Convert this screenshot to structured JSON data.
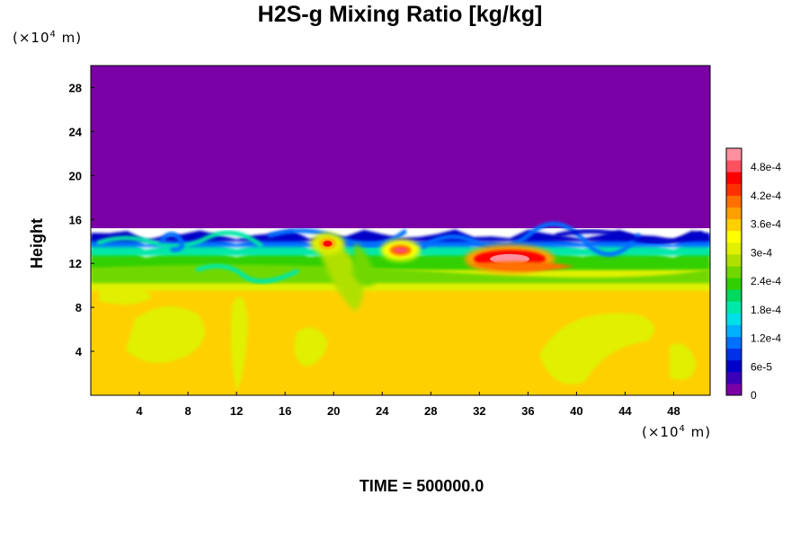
{
  "chart_data": {
    "type": "heatmap",
    "title": "H2S-g Mixing Ratio [kg/kg]",
    "ylabel": "Height",
    "xunit": "m",
    "yunit": "m",
    "unit_prefix": "(×10",
    "unit_exp": "4",
    "footer": "TIME = 500000.0",
    "xlim": [
      0,
      51
    ],
    "ylim": [
      0,
      30
    ],
    "x_ticks": [
      4,
      8,
      12,
      16,
      20,
      24,
      28,
      32,
      36,
      40,
      44,
      48
    ],
    "y_ticks": [
      4,
      8,
      12,
      16,
      20,
      24,
      28
    ],
    "colorbar": {
      "vmin": 0,
      "vmax": 0.00052,
      "ticks": [
        {
          "value": 0,
          "label": "0"
        },
        {
          "value": 6e-05,
          "label": "6e-5"
        },
        {
          "value": 0.00012,
          "label": "1.2e-4"
        },
        {
          "value": 0.00018,
          "label": "1.8e-4"
        },
        {
          "value": 0.00024,
          "label": "2.4e-4"
        },
        {
          "value": 0.0003,
          "label": "3e-4"
        },
        {
          "value": 0.00036,
          "label": "3.6e-4"
        },
        {
          "value": 0.00042,
          "label": "4.2e-4"
        },
        {
          "value": 0.00048,
          "label": "4.8e-4"
        }
      ],
      "colors": [
        "#7a00a6",
        "#3a00b8",
        "#0000c8",
        "#0030e8",
        "#0070ff",
        "#00b0ff",
        "#00e0e8",
        "#00e8a8",
        "#00d860",
        "#30d000",
        "#70d800",
        "#b0e000",
        "#e0f000",
        "#ffff00",
        "#ffd000",
        "#ffa000",
        "#ff7000",
        "#ff3000",
        "#ff0000",
        "#ff5060",
        "#ff90a0"
      ]
    },
    "regions": [
      {
        "name": "upper",
        "y_range": [
          15.2,
          30
        ],
        "value": 0
      },
      {
        "name": "mixing-layer",
        "y_range": [
          10.2,
          15.2
        ],
        "value_range": [
          0,
          0.00052
        ]
      },
      {
        "name": "lower",
        "y_range": [
          0,
          10.2
        ],
        "value": 0.00035
      }
    ],
    "hotspots": [
      {
        "x": 34.5,
        "y": 12.4,
        "value": 0.0005
      },
      {
        "x": 25.5,
        "y": 13.2,
        "value": 0.00046
      },
      {
        "x": 19.5,
        "y": 13.8,
        "value": 0.00043
      }
    ]
  }
}
